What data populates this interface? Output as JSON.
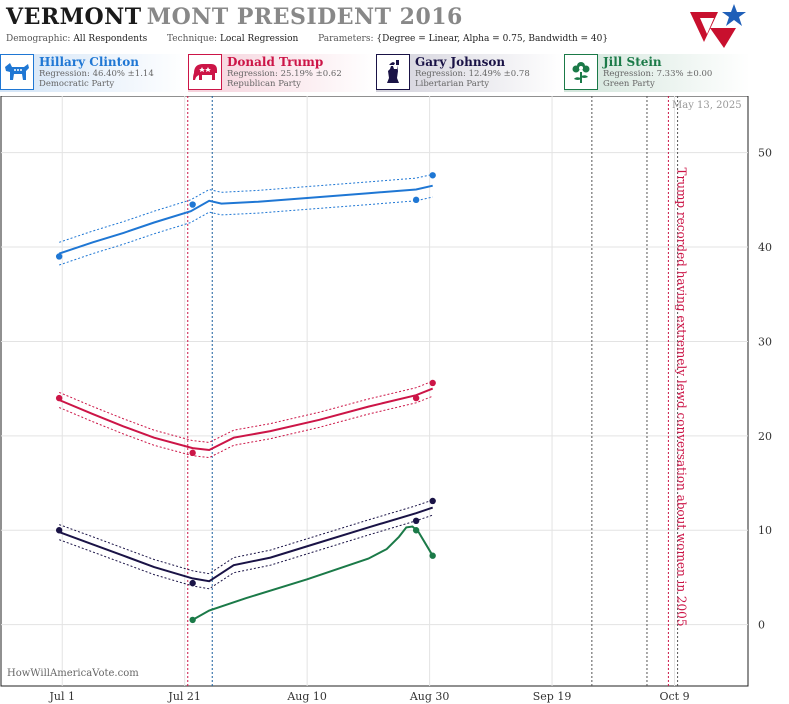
{
  "header": {
    "title_strong": "VERMONT",
    "title_light": "MONT PRESIDENT 2016",
    "demographic_label": "Demographic:",
    "demographic_value": "All Respondents",
    "technique_label": "Technique:",
    "technique_value": "Local Regression",
    "parameters_label": "Parameters:",
    "parameters_value": "{Degree = Linear, Alpha = 0.75, Bandwidth = 40}"
  },
  "candidates": [
    {
      "name": "Hillary Clinton",
      "regression": "Regression: 46.40% ±1.14",
      "party": "Democratic Party",
      "color": "#1f77d4",
      "icon": "donkey-icon"
    },
    {
      "name": "Donald Trump",
      "regression": "Regression: 25.19% ±0.62",
      "party": "Republican Party",
      "color": "#cc1547",
      "icon": "elephant-icon"
    },
    {
      "name": "Gary Johnson",
      "regression": "Regression: 12.49% ±0.78",
      "party": "Libertarian Party",
      "color": "#1a1346",
      "icon": "statue-of-liberty-icon"
    },
    {
      "name": "Jill Stein",
      "regression": "Regression: 7.33% ±0.00",
      "party": "Green Party",
      "color": "#1b7a48",
      "icon": "flower-icon"
    }
  ],
  "watermark": "HowWillAmericaVote.com",
  "date_stamp": "May 13, 2025",
  "chart_data": {
    "type": "line",
    "x_tick_labels": [
      "Jul 1",
      "Jul 21",
      "Aug 10",
      "Aug 30",
      "Sep 19",
      "Oct 9"
    ],
    "x_ticks_day": [
      0,
      20,
      40,
      60,
      80,
      100
    ],
    "x_range_day": [
      -10,
      112
    ],
    "y_ticks": [
      0,
      10,
      20,
      30,
      40,
      50
    ],
    "ylim": [
      -6.5,
      56
    ],
    "y_axis_side": "right",
    "grid": true,
    "annotation": "Trump recorded having extremely lewd conversation about women in 2005",
    "event_lines": [
      {
        "day": 20.5,
        "color": "#cc1547",
        "style": "dotted"
      },
      {
        "day": 24.5,
        "color": "#1a5f9e",
        "style": "dotted"
      },
      {
        "day": 86.5,
        "color": "#555555",
        "style": "dotted"
      },
      {
        "day": 95.5,
        "color": "#555555",
        "style": "dotted"
      },
      {
        "day": 99,
        "color": "#cc1547",
        "style": "dotted"
      },
      {
        "day": 100.5,
        "color": "#555555",
        "style": "dotted"
      }
    ],
    "series": [
      {
        "name": "Hillary Clinton",
        "color": "#1f77d4",
        "points": [
          [
            -0.5,
            39.0
          ],
          [
            21.3,
            44.5
          ],
          [
            57.8,
            45.0
          ],
          [
            60.5,
            47.6
          ]
        ],
        "trend": [
          [
            -0.5,
            39.3
          ],
          [
            5,
            40.5
          ],
          [
            10,
            41.5
          ],
          [
            15,
            42.6
          ],
          [
            21,
            43.8
          ],
          [
            24,
            44.9
          ],
          [
            26,
            44.6
          ],
          [
            32,
            44.8
          ],
          [
            40,
            45.2
          ],
          [
            50,
            45.7
          ],
          [
            57.8,
            46.1
          ],
          [
            60.5,
            46.5
          ]
        ],
        "band": 1.2
      },
      {
        "name": "Donald Trump",
        "color": "#cc1547",
        "points": [
          [
            -0.5,
            24.0
          ],
          [
            21.3,
            18.2
          ],
          [
            57.8,
            24.0
          ],
          [
            60.5,
            25.6
          ]
        ],
        "trend": [
          [
            -0.5,
            23.8
          ],
          [
            5,
            22.3
          ],
          [
            10,
            21.0
          ],
          [
            15,
            19.8
          ],
          [
            21.3,
            18.7
          ],
          [
            24,
            18.5
          ],
          [
            28,
            19.8
          ],
          [
            34,
            20.5
          ],
          [
            42,
            21.7
          ],
          [
            50,
            23.1
          ],
          [
            57.8,
            24.3
          ],
          [
            60.5,
            25.0
          ]
        ],
        "band": 0.8
      },
      {
        "name": "Gary Johnson",
        "color": "#1a1346",
        "points": [
          [
            -0.5,
            10.0
          ],
          [
            21.3,
            4.4
          ],
          [
            57.8,
            11.0
          ],
          [
            60.5,
            13.1
          ]
        ],
        "trend": [
          [
            -0.5,
            9.8
          ],
          [
            5,
            8.5
          ],
          [
            10,
            7.3
          ],
          [
            15,
            6.1
          ],
          [
            21.3,
            4.9
          ],
          [
            24,
            4.6
          ],
          [
            28,
            6.3
          ],
          [
            34,
            7.1
          ],
          [
            42,
            8.7
          ],
          [
            50,
            10.3
          ],
          [
            57.8,
            11.8
          ],
          [
            60.5,
            12.4
          ]
        ],
        "band": 0.8
      },
      {
        "name": "Jill Stein",
        "color": "#1b7a48",
        "points": [
          [
            21.3,
            0.5
          ],
          [
            57.8,
            10.0
          ],
          [
            60.5,
            7.3
          ]
        ],
        "trend": [
          [
            21.3,
            0.5
          ],
          [
            24,
            1.5
          ],
          [
            30,
            2.8
          ],
          [
            40,
            4.8
          ],
          [
            50,
            7.0
          ],
          [
            53,
            8.0
          ],
          [
            55,
            9.3
          ],
          [
            56.2,
            10.3
          ],
          [
            57.2,
            10.4
          ],
          [
            58.2,
            9.8
          ],
          [
            60.5,
            7.3
          ]
        ],
        "band": 0
      }
    ]
  }
}
